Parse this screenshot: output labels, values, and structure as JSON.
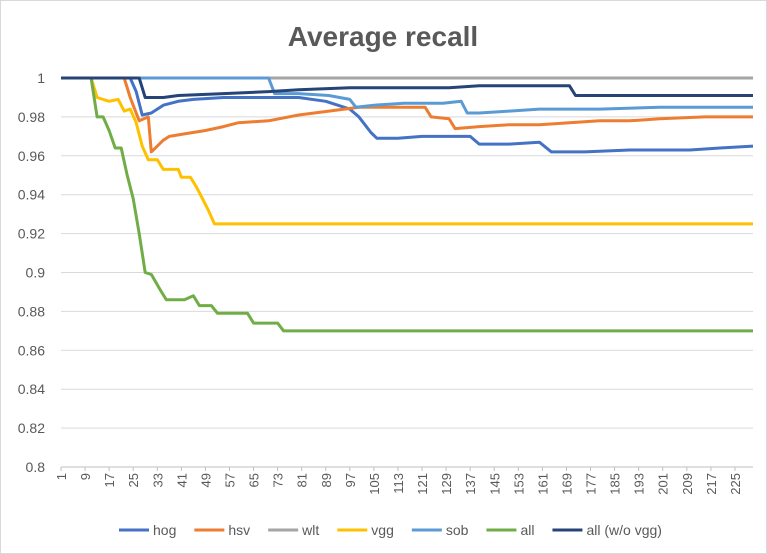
{
  "chart_data": {
    "type": "line",
    "title": "Average recall",
    "ylim": [
      0.8,
      1.0
    ],
    "yticks": [
      "0.8",
      "0.82",
      "0.84",
      "0.86",
      "0.88",
      "0.9",
      "0.92",
      "0.94",
      "0.96",
      "0.98",
      "1"
    ],
    "xlim": [
      1,
      231
    ],
    "xticks": [
      "1",
      "9",
      "17",
      "25",
      "33",
      "41",
      "49",
      "57",
      "65",
      "73",
      "81",
      "89",
      "97",
      "105",
      "113",
      "121",
      "129",
      "137",
      "145",
      "153",
      "161",
      "169",
      "177",
      "185",
      "193",
      "201",
      "209",
      "217",
      "225"
    ],
    "grid": true,
    "legend_position": "bottom",
    "series": [
      {
        "name": "hog",
        "color": "#4472c4",
        "points": [
          [
            1,
            1
          ],
          [
            24,
            1
          ],
          [
            26,
            0.993
          ],
          [
            28,
            0.981
          ],
          [
            31,
            0.982
          ],
          [
            35,
            0.986
          ],
          [
            40,
            0.988
          ],
          [
            45,
            0.989
          ],
          [
            55,
            0.99
          ],
          [
            65,
            0.99
          ],
          [
            70,
            0.99
          ],
          [
            80,
            0.99
          ],
          [
            89,
            0.988
          ],
          [
            97,
            0.984
          ],
          [
            100,
            0.98
          ],
          [
            102,
            0.976
          ],
          [
            104,
            0.972
          ],
          [
            106,
            0.969
          ],
          [
            113,
            0.969
          ],
          [
            121,
            0.97
          ],
          [
            137,
            0.97
          ],
          [
            140,
            0.966
          ],
          [
            150,
            0.966
          ],
          [
            160,
            0.967
          ],
          [
            164,
            0.962
          ],
          [
            175,
            0.962
          ],
          [
            190,
            0.963
          ],
          [
            210,
            0.963
          ],
          [
            220,
            0.964
          ],
          [
            231,
            0.965
          ]
        ]
      },
      {
        "name": "hsv",
        "color": "#ed7d31",
        "points": [
          [
            1,
            1
          ],
          [
            22,
            1
          ],
          [
            24,
            0.99
          ],
          [
            27,
            0.978
          ],
          [
            30,
            0.98
          ],
          [
            31,
            0.962
          ],
          [
            33,
            0.965
          ],
          [
            35,
            0.968
          ],
          [
            37,
            0.97
          ],
          [
            41,
            0.971
          ],
          [
            49,
            0.973
          ],
          [
            55,
            0.975
          ],
          [
            60,
            0.977
          ],
          [
            70,
            0.978
          ],
          [
            80,
            0.981
          ],
          [
            90,
            0.983
          ],
          [
            100,
            0.985
          ],
          [
            110,
            0.985
          ],
          [
            122,
            0.985
          ],
          [
            124,
            0.98
          ],
          [
            130,
            0.979
          ],
          [
            132,
            0.974
          ],
          [
            140,
            0.975
          ],
          [
            150,
            0.976
          ],
          [
            160,
            0.976
          ],
          [
            170,
            0.977
          ],
          [
            180,
            0.978
          ],
          [
            190,
            0.978
          ],
          [
            200,
            0.979
          ],
          [
            215,
            0.98
          ],
          [
            231,
            0.98
          ]
        ]
      },
      {
        "name": "wlt",
        "color": "#a5a5a5",
        "points": [
          [
            1,
            1
          ],
          [
            231,
            1
          ]
        ]
      },
      {
        "name": "vgg",
        "color": "#ffc000",
        "points": [
          [
            1,
            1
          ],
          [
            11,
            1
          ],
          [
            13,
            0.99
          ],
          [
            17,
            0.988
          ],
          [
            20,
            0.989
          ],
          [
            22,
            0.983
          ],
          [
            24,
            0.984
          ],
          [
            26,
            0.977
          ],
          [
            28,
            0.965
          ],
          [
            30,
            0.958
          ],
          [
            33,
            0.958
          ],
          [
            35,
            0.953
          ],
          [
            40,
            0.953
          ],
          [
            41,
            0.949
          ],
          [
            44,
            0.949
          ],
          [
            46,
            0.944
          ],
          [
            48,
            0.938
          ],
          [
            50,
            0.932
          ],
          [
            52,
            0.925
          ],
          [
            60,
            0.925
          ],
          [
            100,
            0.925
          ],
          [
            150,
            0.925
          ],
          [
            231,
            0.925
          ]
        ]
      },
      {
        "name": "sob",
        "color": "#5b9bd5",
        "points": [
          [
            1,
            1
          ],
          [
            70,
            1
          ],
          [
            72,
            0.992
          ],
          [
            80,
            0.992
          ],
          [
            90,
            0.991
          ],
          [
            97,
            0.989
          ],
          [
            99,
            0.985
          ],
          [
            105,
            0.986
          ],
          [
            115,
            0.987
          ],
          [
            128,
            0.987
          ],
          [
            134,
            0.988
          ],
          [
            136,
            0.982
          ],
          [
            140,
            0.982
          ],
          [
            150,
            0.983
          ],
          [
            160,
            0.984
          ],
          [
            180,
            0.984
          ],
          [
            200,
            0.985
          ],
          [
            231,
            0.985
          ]
        ]
      },
      {
        "name": "all",
        "color": "#70ad47",
        "points": [
          [
            1,
            1
          ],
          [
            11,
            1
          ],
          [
            13,
            0.98
          ],
          [
            15,
            0.98
          ],
          [
            17,
            0.973
          ],
          [
            19,
            0.964
          ],
          [
            21,
            0.964
          ],
          [
            23,
            0.95
          ],
          [
            25,
            0.938
          ],
          [
            27,
            0.92
          ],
          [
            29,
            0.9
          ],
          [
            31,
            0.899
          ],
          [
            34,
            0.891
          ],
          [
            36,
            0.886
          ],
          [
            42,
            0.886
          ],
          [
            45,
            0.888
          ],
          [
            47,
            0.883
          ],
          [
            51,
            0.883
          ],
          [
            53,
            0.879
          ],
          [
            63,
            0.879
          ],
          [
            65,
            0.874
          ],
          [
            73,
            0.874
          ],
          [
            75,
            0.87
          ],
          [
            100,
            0.87
          ],
          [
            150,
            0.87
          ],
          [
            200,
            0.87
          ],
          [
            231,
            0.87
          ]
        ]
      },
      {
        "name": "all (w/o vgg)",
        "color": "#264478",
        "points": [
          [
            1,
            1
          ],
          [
            27,
            1
          ],
          [
            29,
            0.99
          ],
          [
            35,
            0.99
          ],
          [
            40,
            0.991
          ],
          [
            55,
            0.992
          ],
          [
            70,
            0.993
          ],
          [
            80,
            0.994
          ],
          [
            97,
            0.995
          ],
          [
            130,
            0.995
          ],
          [
            140,
            0.996
          ],
          [
            170,
            0.996
          ],
          [
            172,
            0.991
          ],
          [
            180,
            0.991
          ],
          [
            231,
            0.991
          ]
        ]
      }
    ]
  }
}
